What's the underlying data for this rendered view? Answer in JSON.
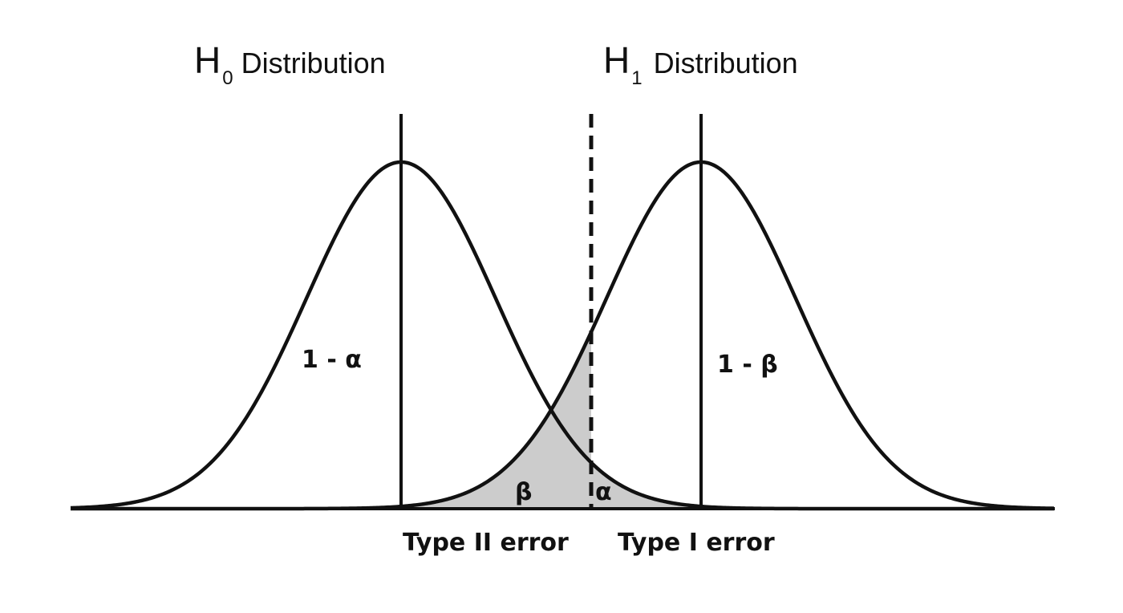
{
  "titles": {
    "h0": {
      "letter": "H",
      "subscript": "0",
      "text": "Distribution"
    },
    "h1": {
      "letter": "H",
      "subscript": "1",
      "text": "Distribution"
    }
  },
  "area_labels": {
    "h0_center": "1 - α",
    "h1_center": "1 - β",
    "beta": "β",
    "alpha": "α"
  },
  "error_labels": {
    "type2": "Type II error",
    "type1": "Type I error"
  },
  "colors": {
    "line": "#111111",
    "shade": "#cccccc",
    "background": "#ffffff"
  }
}
